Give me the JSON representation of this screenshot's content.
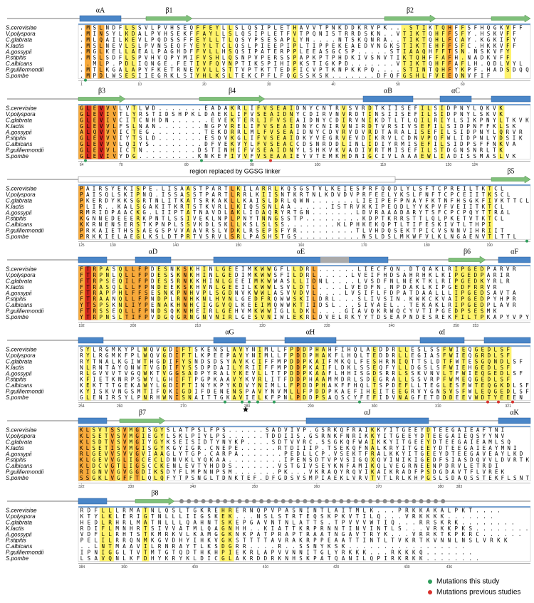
{
  "species": [
    "S.cerevisiae",
    "V.polyspora",
    "C.glabrata",
    "K.lactis",
    "A.gossypii",
    "P.stipitis",
    "C.albicans",
    "P.guilliermondii",
    "S.pombe"
  ],
  "blocks": [
    {
      "structure": [
        "αA",
        "β1",
        "β2"
      ],
      "ruler": [
        1,
        10,
        20,
        30,
        40,
        50,
        60
      ],
      "rows": [
        ".MSLNDFLSSVLPVHSEQFFEYLLSLQSIPLETHAVVTPNKDDKRVPK...STIKTQHFFSFHQGKVFF",
        ".MINSYLKDALPVHSEKFFAYLLSLQSIPLETFVTPQNISTRRDSKN..VTIKTQHFFSFY.HSKVFF",
        ".MLQAILKEVLPQDSSFFEYLLTLQSYPSESAPLYN....NTSKQNRA..TIKTQHLFCAY.KGKIFY",
        ".MSLNEVLSLPVNSEQFYEYLTCLQSLPIEEPIPLTIPPEKEAEDVNGKSTIKTEHFFSFC.HKKVFF",
        ".MGLKELLAEALPAGHDFFVLLHSQSIPATERPPLEEASGCSP.....STIAAQHFFTSN.NSKVFY",
        ".MSLSDFLSPVHVQPYMIFVSHLQSNPVPERSSPAPKPTPHDKIVSNVTIKTQHFFAFH.NADKVFF",
        "..MLP.PDLIQNGE.FETIVFQVNPTIKSPIHIPKSTIGKPD.......VTIKTQHFFAFLH.QDLVYL",
        ".MTLKGALAPYFKETRNEYVLLSTTVPTKTTEDFICVPTKNPKKPQ....STINTQHFYKPF.HADSDQQ",
        ".MPDLWSESIIEGRKLSIYHLKSLTEKCPFLFQGSSKSK.......DFQFGSHLFVEEQNVFIF"
      ]
    },
    {
      "structure": [
        "β3",
        "β4",
        "αB",
        "αC"
      ],
      "ruler": [
        64,
        70,
        80,
        90,
        100,
        110,
        120,
        124
      ],
      "rows": [
        "GLEVVVLVTLWD.......EADAKRLIFVSEAIDNYCNTRVSVRDTKIISEFILSIDPNYLQKVK",
        "GLEVIVTLYRSTIDSHPKLDAEKLIFVSEAIDNYCDIRVNVRDTINSIISEFILSIDPNYLSKVK",
        "GLEVIVCITCNHDN......EVEKTERLIFVSEAIDNYCDIRVNIKDTLTLQILRIYLSIKPNYLTKVK",
        "GLEVVLFSLNAN.......NGPVRELIFVSEAIDNYCNIRVNIRDTVRSIVSEFILSIDPNFFKLSK",
        "ALQVVVICTEG........TEKDRRLMLFVSEAIDNYCDVRVDVRDTARALISEFILSIDPNYLQRVR",
        "GLEVVVIYTSLD.......ESQVKGLIFVSEAIDKYVEGRVEVDIKRVLCDNVPQFWLIDPNLYDSIK",
        "GLEVVVLQIYS........DFVEKVYLFVSEACCDSNRDDLINLIDIYRMISEFILSIDPSFFNKVA",
        "GLEVVLICTN........DSTINHIFVSEAIDNYLSHKVKVADIVRTMISEFILSTDGNSNRLTK",
        "GLEVIVYDG.........KNKEFIVVFVSEAAIEYVTEMKHDNIGCIVLAAAEWLIADISSMASLVK"
      ]
    },
    {
      "structure": [
        "β5"
      ],
      "region_label": "region replaced by GGSG linker",
      "ruler": [
        125,
        130,
        140,
        150,
        160,
        170,
        180,
        190
      ],
      "rows": [
        "PAIRSYEKISPE.LISAASTPARTLKILARRLKQSGSTVLKEIESPRFQQDLYLSFTCPREILTKTCL",
        "PAISQLSKIPNQ.ISSASSTPARTLRRLKIISNTKRTNLKDVDVPRFEELYKSLFNFTCPCEIITKSCL",
        "PKERDYKKSGRTNLITKATSRKAKLLKAISLDRLQWN.......LIEIPEFPNAYFKTNFHSGKFIVKTTCL",
        "PLIR..KALSGAKITKRTSTKVRLLKIQSSNLAA......ISTRVKKIPEQDLYYKPVFVEIITKTCL",
        "RMRIDPAACKG.LIIPTATNAVDLAKLIDAQRYRTGN.......LDVRAAADARYTSFCPCPQYTTRAL",
        "KGNNEDEEERKPNTLSSIVEKLNPLPNYTNNGSSTP.........KDPTKRRSTTLQLPKETVTKTCL",
        "KKRNENSERSTKPNPLSSVKDLSKLLKSLSLSS........KLPHKEKQPTLTIFESKIVTLTHPI",
        "PRKAIETHSSAEGSPVVAAVRSLVDKLRSEPSFYR.........TLVHDQSEKTPICVSNNVIHRIIT",
        "PRKKIELAEGLKSLDTPRTVSRVLSRLPASHSTGS..........NSLDSLMKWFVLKLNGAENVTLTTL"
      ]
    },
    {
      "structure": [
        "αD",
        "αE",
        "β6",
        "αF"
      ],
      "ruler": [
        192,
        200,
        210,
        220,
        230,
        240,
        250,
        253
      ],
      "rows": [
        "FTRPASQLLFPDESNKSKHINLGEEIMKWWGFLLDRL......LIECFQN.DTQAKLRIPGEDPARVR",
        "FTRPNLQLLFPDESSKNKHINLGEDIMKWWSFILDRL.....LVEIFHDSAHRHKLKIPGEDPARIR",
        "FTRPSEQILFPDESSRNKKHINLGEEIMKWWASLLIDNL....LVSDFNLNEKTKLRIPGEDKYRLR",
        "FTRASQLLLFPNDEEKSKHVNLGEEILKWWLSVLDTL....LVEDFN.NPDAKLKIPGEDFRRVR",
        "FTRAPPHLFFSESNKPNHVPLSGDNVKWWLASVVDVL....LVSIFLFDPATDAALLLIPGEDSAVTA",
        "FTRAANQLLFPNDPLRNHKNLHVNLGEDFRQWWSKILDRL...SLIVSIN.KWKCKVAIPGEDPYHPR",
        "YTSPSKNLIYPENAKHNHCIGGVQLKEEIMQWWKTIIDSL...SIVAEL..TEKAKLRIPGEDPLAVR",
        "FTRSSEQLLFPNDSQKNHEIRLGEHVMKWWIGLLDKL....GIAVQKRWQCYVTIPGEDPSESMK",
        "YTRPNSLTIFPVDGQGRNGNVNIRLGESVNIWLEKRLDVELRKYYTDSEAPNDESREKFILTPKAPYVPY"
      ]
    },
    {
      "structure": [
        "αG",
        "αH",
        "αI"
      ],
      "ruler": [
        254,
        260,
        270,
        280,
        290,
        300,
        310,
        321
      ],
      "rows": [
        "SYLRGMKYPLWQVGDIFTSKENSLAVYNIMLLFPDDPHAHFIHQLAEDDRLLESLSSFWIEQGEDLSF",
        "RYLRGMKFPLWQVGDIFTLKPEEPAVYNIMLLFPDDPHAKFLHQLTEDDRLLEGIASFWIEQGRDLSF",
        "RYTNALKGIWTHGDIFYSNDSDSYAVKCIFFMPDDPKAIFMKQLFESHRNIQTTSLDTFWTESGQNDLSF",
        "NLRNTAYQNWTVGDIFYSSDPDAILYRIIFFMPDDPKAIFLDKLSSEQFYLLDGSLSFWIEHGEDLSF",
        "RLGVVVTVGQWKTVGGSADPYRALYKEVLLTTPDDPKAAFLHHISGDSRRLSSKVNVLTFWIEQGEDLSF",
        "KFIETKNRPSWYLGHIFTPGPKAAVYKVRLITFDDPHAAMMDRLSDEGRALLSSVRPFWMEQGEDLSF",
        "KEKTTTGEKAWYLGDIFTINYKPYKDVYNIMLLFPDDPHAKFFHQLTSPDEFLLTEGLESFWTEQGKDLSF",
        "KYISKVNGSMTIFQKIGDIFDENENSPAVYNVMLLFPDDPKAEFIHEITEEGRVYGNSVSFWLEQGEDLSF",
        "GLENIRSYLPNRHWNISNAITTGKAVIELKFPNLPDDPSAQSCYFEFIDVNAGFETDDDEEVWDTYEEEN"
      ]
    },
    {
      "structure": [
        "β7",
        "αJ",
        "αK"
      ],
      "ruler": [
        322,
        330,
        340,
        350,
        360,
        370,
        380,
        383
      ],
      "rows": [
        "KLSVTSSVMGISGYSLATPSLFPS......SADVIVP.GSRKQFRAIKKYITGEEYDTEEGAIEAFTNI",
        "KLSETVSVMGIEGYLSKLPIYLPS......TDDIIS.GSRNKFNRIKKYITGEEYDTEEGAIEQSYYNV",
        "KLSDTVSVMGIYGYKSEISIDTYNYKP....SDTVVRC.SSGKQFWAIKKYITGEEYDTEEGAIEAMLSQ",
        "KLSETISVMGISGYKGYIGR.CNEPE......RTDIIIP.TSEKQFNALKRYITGEEYDTEEGAIEAYMNI",
        "RLGEVVSVVGVIAAGLYTGP.CARPA.......PEDLLCP.VSEKTFRALKKYITGEEYDTEEGAVEAYLKD",
        "KLGEVVGLIGCECLDNVKLVQKAA.........IPENSDTVPVSIGQXQVINIKIGEDFSIASDQVVLDVRTK",
        "KLDCVGTLIGSCCKENLEVTYHDDS.......VSTGIVSEYKNFAMIKQLVEGRNEENPDRVLETRDI",
        "RIGNVVGVGGDIKSDYFLMPNNPSM.......PK...VKRAQYRQVIKAIKRADFPSDGDAVTFLVREK",
        "SSGKLVGFFTLQLQFYTPSNGLTDNKTEF.DFGDSVSMPIAEKLVRVTVTLRLKHPGSLSDAQSSTEKFLSNT"
      ]
    },
    {
      "structure": [
        "β8"
      ],
      "ruler": [
        384,
        390,
        400,
        410,
        420,
        430,
        436
      ],
      "rows": [
        "RDFLLLRMATNLQSLTGKREHRERNQPVPASNINTLAITMLK...PRKKAKALPKT....",
        "KTYLKLERIGTNLLLIIGSKEK...NSLSTRTEQSKPKVTILQ...VRKKKK.......",
        "HEDLRHRLMATNLLLQAHNTSKEPGAVNTNLATTS.TPVVVWTIQ...RRSKRK........",
        "RDIFLMNHRTSIVVATMLQAGNHH..KIATTKRPRNNTINVINTLS...VRKKPKS........",
        "VDFLLRHTSTKMRKVLKAMGGKNKPATPRAPTRAATNGAVTRYK...VRRKTKPKRC......",
        "PELILRRQNMKGVDHYIHKVGKSTTTTAVRAKRPPEAATTINTLTVKRTKVNNLNSLVRKK",
        "..LNTMAAVILRNRAYTLKSDGRR....R..SSNYKSK.................",
        "IPNIGGLTVTMTGTQDTHKHPIEKRLAPVVNNITGLYRKKK...RKKKQ.......",
        "LSAVQNLKFDHYKRYKLDICGLAKRDDRKNHSKPATQANILQPIRKRKK........"
      ]
    }
  ],
  "legend": [
    {
      "label": "Mutations this study",
      "color": "#2e9e5b"
    },
    {
      "label": "Mutations previous studies",
      "color": "#d9302c"
    }
  ]
}
